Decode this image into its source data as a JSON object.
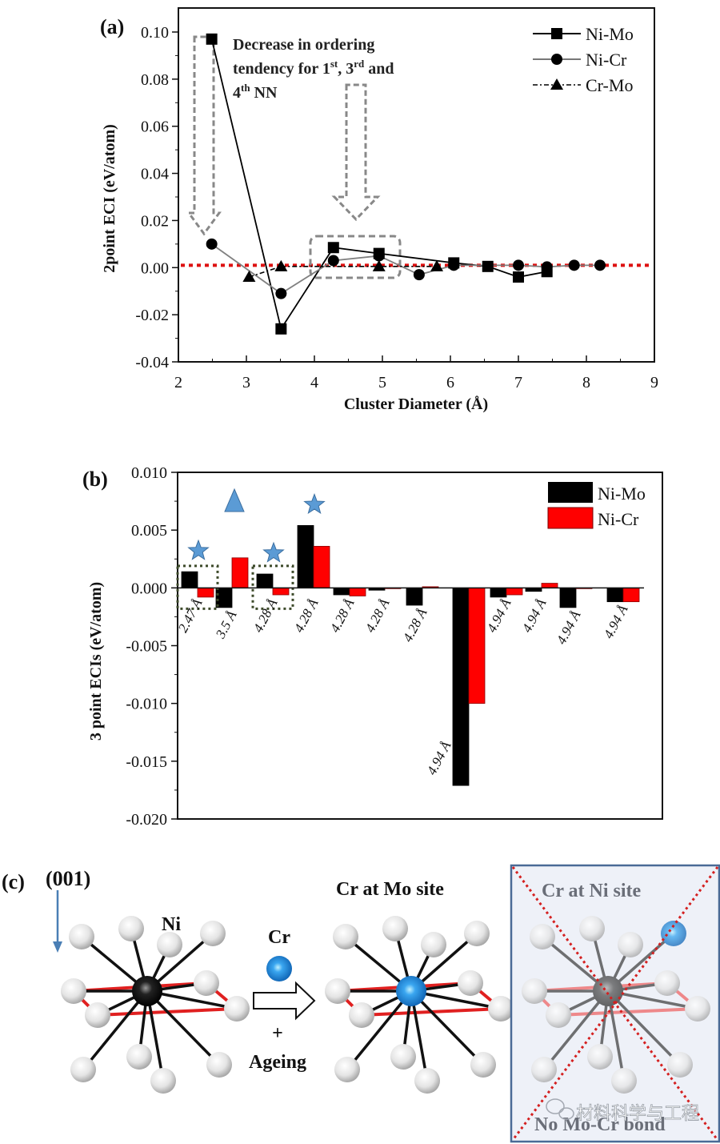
{
  "figure": {
    "panel_labels": [
      "(a)",
      "(b)",
      "(c)"
    ]
  },
  "chart_data": [
    {
      "type": "line",
      "panel": "(a)",
      "title": "",
      "xlabel": "Cluster Diameter (Å)",
      "ylabel": "2point ECI (eV/atom)",
      "xlim": [
        2,
        9
      ],
      "ylim": [
        -0.04,
        0.1
      ],
      "xticks": [
        2,
        3,
        4,
        5,
        6,
        7,
        8,
        9
      ],
      "yticks": [
        -0.04,
        -0.02,
        0.0,
        0.02,
        0.04,
        0.06,
        0.08,
        0.1
      ],
      "xtick_labels": [
        "2",
        "3",
        "4",
        "5",
        "6",
        "7",
        "8",
        "9"
      ],
      "ytick_labels": [
        "-0.04",
        "-0.02",
        "0.00",
        "0.02",
        "0.04",
        "0.06",
        "0.08",
        "0.10"
      ],
      "reference_line": {
        "y": 0.001,
        "style": "red dotted"
      },
      "legend_position": "top-right",
      "series": [
        {
          "name": "Ni-Mo",
          "marker": "square",
          "line": "solid-black",
          "x": [
            2.49,
            3.51,
            4.28,
            4.95,
            6.05,
            6.55,
            7.0,
            7.42
          ],
          "y": [
            0.097,
            -0.026,
            0.0085,
            0.006,
            0.002,
            0.0005,
            -0.004,
            -0.0017
          ]
        },
        {
          "name": "Ni-Cr",
          "marker": "circle",
          "line": "solid-grey",
          "x": [
            2.49,
            3.51,
            4.28,
            4.95,
            5.54,
            6.05,
            7.0,
            7.42,
            7.82,
            8.2
          ],
          "y": [
            0.01,
            -0.011,
            0.003,
            0.005,
            -0.003,
            0.001,
            0.001,
            0.0003,
            0.001,
            0.001
          ]
        },
        {
          "name": "Cr-Mo",
          "marker": "triangle",
          "line": "dash-dot",
          "x": [
            3.04,
            3.51,
            4.95,
            5.8
          ],
          "y": [
            -0.004,
            0.0005,
            0.0005,
            0.0005
          ]
        }
      ],
      "annotations": {
        "text_line1": "Decrease in ordering",
        "text_line2_a": "tendency for 1",
        "sup1": "st",
        "text_line2_b": ", 3",
        "sup2": "rd",
        "text_line2_c": " and",
        "text_line3_a": "4",
        "sup3": "th",
        "text_line3_b": " NN",
        "arrows_at_x": [
          2.35,
          4.6
        ],
        "highlight_box_x": [
          3.95,
          5.25
        ]
      }
    },
    {
      "type": "bar",
      "panel": "(b)",
      "title": "",
      "xlabel": "",
      "ylabel": "3 point ECIs (eV/atom)",
      "ylim": [
        -0.02,
        0.01
      ],
      "yticks": [
        -0.02,
        -0.015,
        -0.01,
        -0.005,
        0.0,
        0.005,
        0.01
      ],
      "ytick_labels": [
        "-0.020",
        "-0.015",
        "-0.010",
        "-0.005",
        "0.000",
        "0.005",
        "0.010"
      ],
      "legend_position": "top-right",
      "categories": [
        "2.47 Å",
        "3.5 Å",
        "4.28 Å",
        "4.28 Å",
        "4.28 Å",
        "4.28 Å",
        "4.28 Å",
        "4.94 Å",
        "4.94 Å",
        "4.94 Å",
        "4.94 Å",
        "4.94 Å"
      ],
      "series": [
        {
          "name": "Ni-Mo",
          "color": "#000000",
          "values": [
            0.0014,
            -0.0017,
            0.0012,
            0.0054,
            -0.0006,
            -0.0002,
            -0.0015,
            -0.0171,
            -0.0008,
            -0.0003,
            -0.0017,
            -0.0012
          ]
        },
        {
          "name": "Ni-Cr",
          "color": "#ff0000",
          "values": [
            -0.0008,
            0.0026,
            -0.0006,
            0.0036,
            -0.0007,
            0.0,
            0.0001,
            -0.01,
            -0.0006,
            0.0004,
            0.0,
            -0.0012
          ]
        }
      ],
      "markers": [
        {
          "type": "star",
          "category_index": 0,
          "color": "#5b9bd5"
        },
        {
          "type": "triangle",
          "category_index": 1,
          "color": "#5b9bd5"
        },
        {
          "type": "star",
          "category_index": 2,
          "color": "#5b9bd5"
        },
        {
          "type": "star",
          "category_index": 3,
          "color": "#5b9bd5"
        }
      ],
      "dashed_boxes_category_index": [
        0,
        2
      ]
    }
  ],
  "panel_c": {
    "direction_label": "(001)",
    "left_center_label": "Ni",
    "arrow_top_label": "Cr",
    "arrow_plus": "+",
    "arrow_bottom_label": "Ageing",
    "middle_title": "Cr at Mo site",
    "right_title": "Cr at Ni site",
    "right_bottom_text": "No Mo-Cr bond",
    "watermark": "材料科学与工程",
    "colors": {
      "cr_atom": "#1e7fd6",
      "bond_red": "#e02020",
      "cross": "#d42020",
      "crossed_panel_bg": "#eef1f8",
      "crossed_panel_border": "#4a6a96"
    }
  }
}
